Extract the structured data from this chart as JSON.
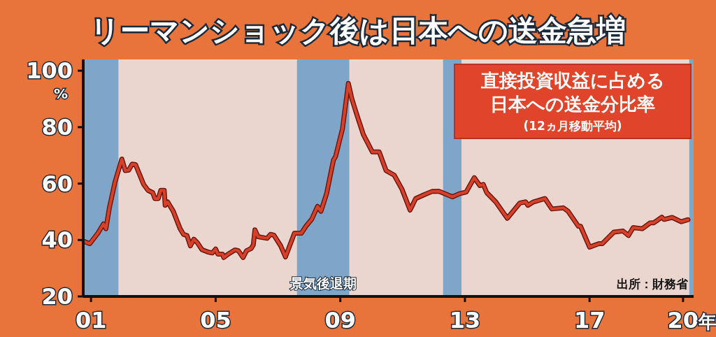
{
  "chart_data": {
    "type": "line",
    "title": "リーマンショック後は日本への送金急増",
    "subtitle": "直接投資収益に占める日本への送金分比率",
    "ylabel": "%",
    "xlabel": "年",
    "annotations": [
      "(12ヵ月移動平均)",
      "出所：財務省"
    ],
    "x": [
      2000.78,
      2000.96,
      2001.22,
      2001.4,
      2001.48,
      2001.59,
      2001.77,
      2001.99,
      2002.1,
      2002.21,
      2002.32,
      2002.43,
      2002.69,
      2002.83,
      2002.98,
      2003.05,
      2003.16,
      2003.24,
      2003.35,
      2003.38,
      2003.46,
      2003.64,
      2003.86,
      2003.97,
      2004.08,
      2004.19,
      2004.3,
      2004.41,
      2004.56,
      2004.74,
      2004.89,
      2005.0,
      2005.07,
      2005.22,
      2005.26,
      2005.4,
      2005.62,
      2005.73,
      2005.88,
      2005.99,
      2006.14,
      2006.21,
      2006.26,
      2006.36,
      2006.65,
      2006.76,
      2006.87,
      2007.09,
      2007.24,
      2007.53,
      2007.75,
      2007.9,
      2008.08,
      2008.27,
      2008.38,
      2008.56,
      2008.78,
      2008.85,
      2009.07,
      2009.26,
      2009.37,
      2009.52,
      2009.74,
      2010.03,
      2010.25,
      2010.47,
      2010.73,
      2010.98,
      2011.24,
      2011.42,
      2011.68,
      2011.94,
      2012.16,
      2012.6,
      2012.82,
      2013.04,
      2013.3,
      2013.48,
      2013.59,
      2013.7,
      2013.99,
      2014.36,
      2014.76,
      2014.95,
      2015.02,
      2015.2,
      2015.57,
      2015.79,
      2016.16,
      2016.31,
      2016.64,
      2016.71,
      2017.0,
      2017.3,
      2017.41,
      2017.78,
      2018.07,
      2018.25,
      2018.4,
      2018.69,
      2018.95,
      2019.06,
      2019.32,
      2019.39,
      2019.65,
      2019.94,
      2020.16
    ],
    "series": [
      {
        "color": "#d8402a",
        "values": [
          39.5,
          38.7,
          42.4,
          45.7,
          44.0,
          51.4,
          60.5,
          68.7,
          64.6,
          64.8,
          66.9,
          66.7,
          59.7,
          57.6,
          56.8,
          54.7,
          54.7,
          57.6,
          57.6,
          52.3,
          53.5,
          50.2,
          44.0,
          42.0,
          41.6,
          37.9,
          40.3,
          39.1,
          36.6,
          35.8,
          35.4,
          36.8,
          35.0,
          35.0,
          33.8,
          35.0,
          36.5,
          36.2,
          33.8,
          36.2,
          37.0,
          38.3,
          43.6,
          41.2,
          40.6,
          42.0,
          41.7,
          37.9,
          34.0,
          42.4,
          42.4,
          44.9,
          47.3,
          51.9,
          50.2,
          56.4,
          68.3,
          69.6,
          79.4,
          95.5,
          90.1,
          84.8,
          77.4,
          71.2,
          71.2,
          64.6,
          63.0,
          58.0,
          50.6,
          54.7,
          56.0,
          57.2,
          57.3,
          55.3,
          56.4,
          57.0,
          62.1,
          59.3,
          59.7,
          56.8,
          53.5,
          47.7,
          53.1,
          53.5,
          52.3,
          53.5,
          54.7,
          51.0,
          51.4,
          50.2,
          44.9,
          44.9,
          37.5,
          38.7,
          38.7,
          42.8,
          43.2,
          41.6,
          44.4,
          44.0,
          46.1,
          46.1,
          48.1,
          47.3,
          48.0,
          46.5,
          47.2
        ]
      }
    ],
    "xlim": [
      2000.75,
      2020.34
    ],
    "ylim": [
      20,
      104
    ],
    "xticks": [
      {
        "value": 2001,
        "label": "01"
      },
      {
        "value": 2005,
        "label": "05"
      },
      {
        "value": 2009,
        "label": "09"
      },
      {
        "value": 2013,
        "label": "13"
      },
      {
        "value": 2017,
        "label": "17"
      },
      {
        "value": 2020,
        "label": "20"
      }
    ],
    "yticks": [
      20,
      40,
      60,
      80,
      100
    ],
    "bands": [
      {
        "axis": "x",
        "from": 2000.75,
        "to": 2001.88,
        "color": "#7fa6c8"
      },
      {
        "axis": "x",
        "from": 2007.61,
        "to": 2009.29,
        "color": "#7fa6c8",
        "label": "景気後退期"
      },
      {
        "axis": "x",
        "from": 2012.3,
        "to": 2012.89,
        "color": "#7fa6c8"
      },
      {
        "axis": "x",
        "from": 2020.2,
        "to": 2020.34,
        "color": "#7fa6c8"
      }
    ]
  }
}
